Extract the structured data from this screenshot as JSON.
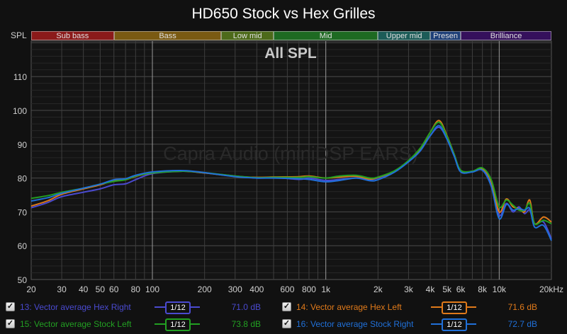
{
  "title": "HD650 Stock vs Hex Grilles",
  "y_axis_label": "SPL",
  "overlay_label": "All SPL",
  "watermark": "Capra Audio (miniDSP EARS)",
  "bands": [
    {
      "label": "Sub bass",
      "from": 20,
      "to": 60,
      "color": "#8b1a1a"
    },
    {
      "label": "Bass",
      "from": 60,
      "to": 250,
      "color": "#7a5a12"
    },
    {
      "label": "Low mid",
      "from": 250,
      "to": 500,
      "color": "#4d6a1a"
    },
    {
      "label": "Mid",
      "from": 500,
      "to": 2000,
      "color": "#1e6a22"
    },
    {
      "label": "Upper mid",
      "from": 2000,
      "to": 4000,
      "color": "#1c5c58"
    },
    {
      "label": "Presen",
      "from": 4000,
      "to": 6000,
      "color": "#1e3f78"
    },
    {
      "label": "Brilliance",
      "from": 6000,
      "to": 20000,
      "color": "#35105c"
    }
  ],
  "legend": [
    {
      "id": 13,
      "label": "13: Vector average Hex Right",
      "smoothing": "1/12",
      "value": "71.0 dB",
      "color": "#4a4ad0",
      "checked": true
    },
    {
      "id": 14,
      "label": "14: Vector average Hex Left",
      "smoothing": "1/12",
      "value": "71.6 dB",
      "color": "#e07a1a",
      "checked": true
    },
    {
      "id": 15,
      "label": "15: Vector average Stock Left",
      "smoothing": "1/12",
      "value": "73.8 dB",
      "color": "#22a022",
      "checked": true
    },
    {
      "id": 16,
      "label": "16: Vector average Stock Right",
      "smoothing": "1/12",
      "value": "72.7 dB",
      "color": "#2070d8",
      "checked": true
    }
  ],
  "chart_data": {
    "type": "line",
    "title": "HD650 Stock vs Hex Grilles",
    "subtitle": "All SPL",
    "xlabel": "Hz",
    "ylabel": "SPL",
    "xscale": "log",
    "xlim": [
      20,
      20000
    ],
    "ylim": [
      50,
      120
    ],
    "x_ticks": [
      20,
      30,
      40,
      50,
      60,
      80,
      100,
      200,
      300,
      400,
      600,
      800,
      1000,
      2000,
      3000,
      4000,
      5000,
      6000,
      8000,
      10000,
      20000
    ],
    "x_tick_labels": [
      "20",
      "30",
      "40",
      "50",
      "60",
      "80",
      "100",
      "200",
      "300",
      "400",
      "600",
      "800",
      "1k",
      "2k",
      "3k",
      "4k",
      "5k",
      "6k",
      "8k",
      "10k",
      "20kHz"
    ],
    "y_ticks": [
      50,
      60,
      70,
      80,
      90,
      100,
      110
    ],
    "grid": true,
    "legend_position": "bottom",
    "x": [
      20,
      25,
      30,
      40,
      50,
      60,
      70,
      80,
      100,
      150,
      200,
      300,
      400,
      500,
      700,
      800,
      1000,
      1200,
      1500,
      1800,
      2000,
      2500,
      3000,
      3500,
      4000,
      4500,
      5000,
      5500,
      6000,
      7000,
      8000,
      9000,
      10000,
      11000,
      12000,
      13000,
      14000,
      15000,
      16000,
      18000,
      20000
    ],
    "series": [
      {
        "name": "13: Vector average Hex Right",
        "color": "#4a4ad0",
        "values": [
          71.2,
          72.8,
          74.5,
          75.8,
          76.8,
          78.0,
          78.3,
          79.5,
          81.3,
          82.0,
          81.5,
          80.6,
          80.0,
          80.2,
          79.6,
          80.0,
          79.3,
          79.6,
          80.0,
          79.6,
          80.0,
          82.0,
          84.8,
          88.0,
          92.5,
          95.0,
          91.5,
          86.5,
          82.0,
          82.0,
          82.5,
          78.0,
          69.0,
          72.5,
          70.0,
          71.5,
          69.5,
          70.5,
          66.5,
          67.0,
          62.0
        ]
      },
      {
        "name": "14: Vector average Hex Left",
        "color": "#e07a1a",
        "values": [
          71.7,
          73.3,
          75.2,
          76.8,
          78.0,
          79.3,
          79.5,
          80.5,
          81.5,
          82.0,
          81.5,
          80.5,
          80.2,
          80.3,
          80.4,
          80.6,
          80.0,
          80.3,
          80.5,
          79.7,
          80.2,
          82.0,
          85.0,
          88.5,
          93.5,
          97.0,
          92.5,
          87.0,
          82.0,
          82.0,
          82.8,
          79.0,
          70.0,
          73.8,
          71.5,
          71.0,
          70.0,
          73.5,
          66.5,
          68.5,
          67.0
        ]
      },
      {
        "name": "15: Vector average Stock Left",
        "color": "#22a022",
        "values": [
          74.0,
          74.8,
          75.8,
          77.0,
          78.2,
          79.0,
          79.5,
          80.6,
          81.5,
          82.0,
          81.6,
          80.6,
          80.1,
          80.2,
          80.2,
          80.4,
          80.0,
          80.6,
          80.8,
          80.0,
          80.3,
          82.2,
          85.2,
          88.8,
          93.5,
          96.5,
          92.3,
          87.0,
          82.3,
          82.0,
          83.0,
          79.5,
          71.5,
          73.5,
          72.0,
          70.5,
          70.5,
          72.5,
          66.5,
          67.5,
          66.5
        ]
      },
      {
        "name": "16: Vector average Stock Right",
        "color": "#2070d8",
        "values": [
          73.2,
          74.2,
          75.5,
          77.0,
          78.2,
          79.5,
          79.8,
          80.8,
          81.8,
          82.2,
          81.6,
          80.4,
          80.0,
          80.0,
          79.8,
          79.6,
          78.9,
          79.3,
          80.0,
          79.2,
          79.5,
          81.8,
          84.8,
          88.0,
          92.5,
          95.5,
          91.5,
          86.5,
          81.8,
          81.8,
          82.3,
          77.5,
          68.0,
          72.2,
          70.5,
          71.0,
          70.5,
          71.0,
          65.5,
          66.0,
          61.5
        ]
      }
    ]
  }
}
